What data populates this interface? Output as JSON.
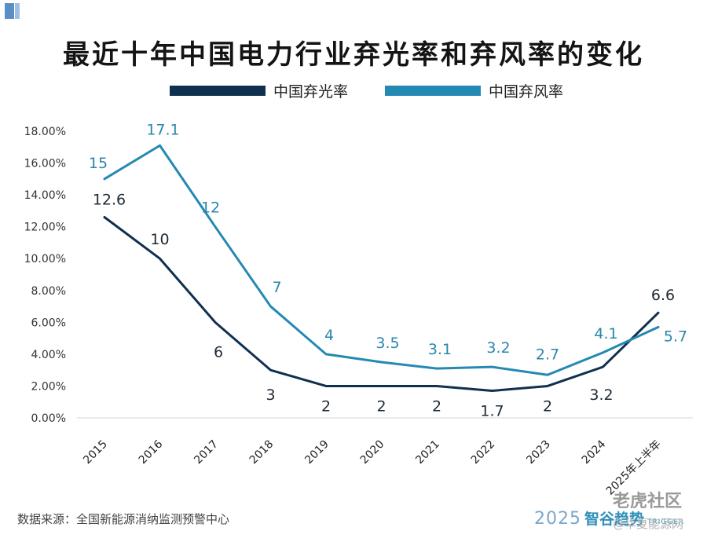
{
  "header": {
    "title": "最近十年中国电力行业弃光率和弃风率的变化"
  },
  "footer": {
    "source": "数据来源：全国新能源消纳监测预警中心",
    "brand_year": "2025",
    "brand_name": "智谷趋势",
    "brand_en": "TRIGGER",
    "watermark_main": "老虎社区",
    "watermark_sub": "@华夏能源网"
  },
  "chart_data": {
    "type": "line",
    "title": "最近十年中国电力行业弃光率和弃风率的变化",
    "categories": [
      "2015",
      "2016",
      "2017",
      "2018",
      "2019",
      "2020",
      "2021",
      "2022",
      "2023",
      "2024",
      "2025年上半年"
    ],
    "y_ticks": [
      "0.00%",
      "2.00%",
      "4.00%",
      "6.00%",
      "8.00%",
      "10.00%",
      "12.00%",
      "14.00%",
      "16.00%",
      "18.00%"
    ],
    "ylim": [
      0,
      18
    ],
    "legend_position": "top",
    "series": [
      {
        "name": "中国弃光率",
        "color": "#10304f",
        "values": [
          12.6,
          10,
          6,
          3,
          2,
          2,
          2,
          1.7,
          2,
          3.2,
          6.6
        ],
        "labels": [
          "12.6",
          "10",
          "6",
          "3",
          "2",
          "2",
          "2",
          "1.7",
          "2",
          "3.2",
          "6.6"
        ]
      },
      {
        "name": "中国弃风率",
        "color": "#2489b3",
        "values": [
          15,
          17.1,
          12,
          7,
          4,
          3.5,
          3.1,
          3.2,
          2.7,
          4.1,
          5.7
        ],
        "labels": [
          "15",
          "17.1",
          "12",
          "7",
          "4",
          "3.5",
          "3.1",
          "3.2",
          "2.7",
          "4.1",
          "5.7"
        ]
      }
    ]
  }
}
